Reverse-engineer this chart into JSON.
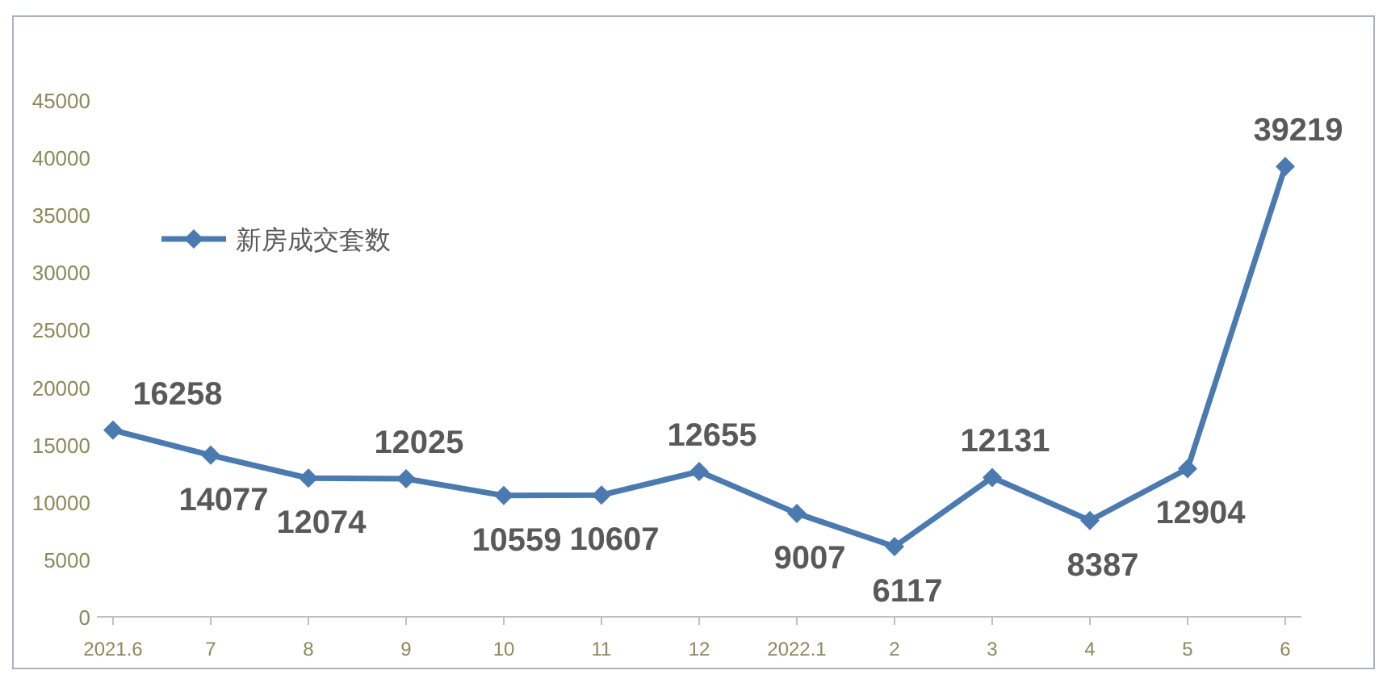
{
  "chart_data": {
    "type": "line",
    "categories": [
      "2021.6",
      "7",
      "8",
      "9",
      "10",
      "11",
      "12",
      "2022.1",
      "2",
      "3",
      "4",
      "5",
      "6"
    ],
    "series": [
      {
        "name": "新房成交套数",
        "color": "#4a7ab0",
        "values": [
          16258,
          14077,
          12074,
          12025,
          10559,
          10607,
          12655,
          9007,
          6117,
          12131,
          8387,
          12904,
          39219
        ]
      }
    ],
    "ylim": [
      0,
      45000
    ],
    "yticks": [
      0,
      5000,
      10000,
      15000,
      20000,
      25000,
      30000,
      35000,
      40000,
      45000
    ],
    "marker": "diamond",
    "data_labels": true,
    "legend": "top left",
    "grid": false
  }
}
